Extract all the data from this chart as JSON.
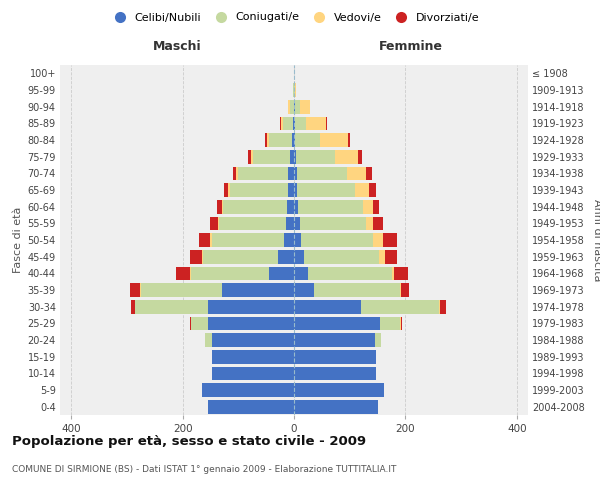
{
  "age_groups": [
    "0-4",
    "5-9",
    "10-14",
    "15-19",
    "20-24",
    "25-29",
    "30-34",
    "35-39",
    "40-44",
    "45-49",
    "50-54",
    "55-59",
    "60-64",
    "65-69",
    "70-74",
    "75-79",
    "80-84",
    "85-89",
    "90-94",
    "95-99",
    "100+"
  ],
  "birth_years": [
    "2004-2008",
    "1999-2003",
    "1994-1998",
    "1989-1993",
    "1984-1988",
    "1979-1983",
    "1974-1978",
    "1969-1973",
    "1964-1968",
    "1959-1963",
    "1954-1958",
    "1949-1953",
    "1944-1948",
    "1939-1943",
    "1934-1938",
    "1929-1933",
    "1924-1928",
    "1919-1923",
    "1914-1918",
    "1909-1913",
    "≤ 1908"
  ],
  "males": {
    "celibi": [
      155,
      165,
      148,
      148,
      148,
      155,
      155,
      130,
      45,
      28,
      18,
      14,
      12,
      10,
      10,
      8,
      4,
      2,
      0,
      0,
      0
    ],
    "coniugati": [
      0,
      0,
      0,
      0,
      12,
      30,
      130,
      145,
      140,
      135,
      130,
      120,
      115,
      105,
      90,
      65,
      40,
      18,
      8,
      2,
      0
    ],
    "vedovi": [
      0,
      0,
      0,
      0,
      0,
      0,
      0,
      1,
      2,
      2,
      2,
      2,
      2,
      3,
      5,
      5,
      5,
      4,
      2,
      0,
      0
    ],
    "divorziati": [
      0,
      0,
      0,
      0,
      0,
      2,
      8,
      18,
      25,
      22,
      20,
      15,
      10,
      8,
      5,
      4,
      3,
      2,
      0,
      0,
      0
    ]
  },
  "females": {
    "nubili": [
      150,
      162,
      148,
      148,
      145,
      155,
      120,
      35,
      25,
      18,
      12,
      10,
      8,
      5,
      5,
      4,
      2,
      2,
      2,
      0,
      0
    ],
    "coniugate": [
      0,
      0,
      0,
      0,
      12,
      35,
      140,
      155,
      150,
      135,
      130,
      120,
      115,
      105,
      90,
      70,
      45,
      20,
      8,
      2,
      0
    ],
    "vedove": [
      0,
      0,
      0,
      0,
      0,
      2,
      2,
      2,
      5,
      10,
      18,
      12,
      18,
      25,
      35,
      40,
      50,
      35,
      18,
      2,
      0
    ],
    "divorziate": [
      0,
      0,
      0,
      0,
      0,
      2,
      10,
      15,
      25,
      22,
      25,
      18,
      12,
      12,
      10,
      8,
      4,
      2,
      0,
      0,
      0
    ]
  },
  "colors": {
    "celibi_nubili": "#4472C4",
    "coniugati": "#C5D9A0",
    "vedovi": "#FFD580",
    "divorziati": "#CC2222"
  },
  "xlim": 420,
  "title": "Popolazione per età, sesso e stato civile - 2009",
  "subtitle": "COMUNE DI SIRMIONE (BS) - Dati ISTAT 1° gennaio 2009 - Elaborazione TUTTITALIA.IT",
  "ylabel_left": "Fasce di età",
  "ylabel_right": "Anni di nascita",
  "xlabel_left": "Maschi",
  "xlabel_right": "Femmine",
  "bg_color": "#efefef",
  "bar_height": 0.82,
  "legend_labels": [
    "Celibi/Nubili",
    "Coniugati/e",
    "Vedovi/e",
    "Divorziati/e"
  ]
}
